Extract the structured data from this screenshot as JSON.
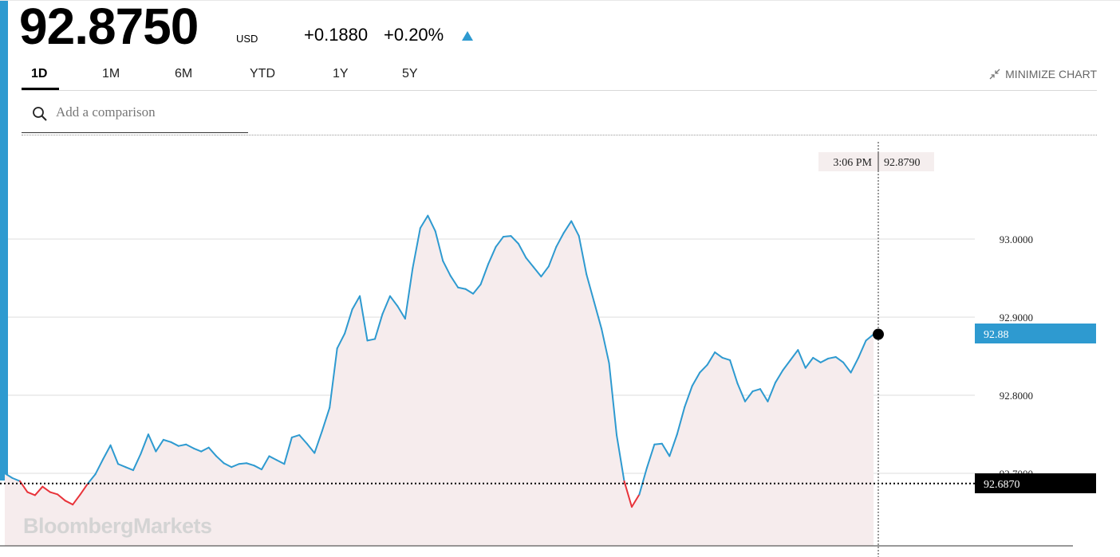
{
  "header": {
    "price": "92.8750",
    "currency": "USD",
    "change_abs": "+0.1880",
    "change_pct": "+0.20%"
  },
  "tabs": [
    {
      "label": "1D",
      "active": true
    },
    {
      "label": "1M"
    },
    {
      "label": "6M"
    },
    {
      "label": "YTD"
    },
    {
      "label": "1Y"
    },
    {
      "label": "5Y"
    }
  ],
  "minimize_label": "MINIMIZE CHART",
  "search": {
    "placeholder": "Add a comparison"
  },
  "watermark": "BloombergMarkets",
  "colors": {
    "accent": "#2e9ad0",
    "up_line": "#2e9ad0",
    "down_line": "#e8333a",
    "fill": "#f6eced",
    "current_badge": "#2e9ad0",
    "prev_close_badge": "#000000"
  },
  "chart_data": {
    "type": "line",
    "ylim": [
      92.6,
      93.1
    ],
    "y_ticks": [
      "93.0000",
      "92.9000",
      "92.8000",
      "92.7000"
    ],
    "y_tick_values": [
      93.0,
      92.9,
      92.8,
      92.7
    ],
    "grid": true,
    "previous_close": 92.687,
    "previous_close_label": "92.6870",
    "current_label": "92.88",
    "crosshair": {
      "time": "3:06 PM",
      "value": "92.8790"
    },
    "series": [
      {
        "values": [
          92.7,
          92.694,
          92.69,
          92.676,
          92.672,
          92.683,
          92.676,
          92.673,
          92.665,
          92.66,
          92.673,
          92.687,
          92.699,
          92.718,
          92.736,
          92.712,
          92.708,
          92.704,
          92.725,
          92.75,
          92.728,
          92.743,
          92.74,
          92.735,
          92.737,
          92.732,
          92.728,
          92.733,
          92.722,
          92.713,
          92.708,
          92.712,
          92.713,
          92.71,
          92.705,
          92.722,
          92.717,
          92.712,
          92.746,
          92.749,
          92.738,
          92.726,
          92.754,
          92.784,
          92.86,
          92.879,
          92.91,
          92.927,
          92.87,
          92.872,
          92.904,
          92.927,
          92.914,
          92.898,
          92.963,
          93.014,
          93.03,
          93.01,
          92.972,
          92.953,
          92.938,
          92.936,
          92.93,
          92.942,
          92.968,
          92.99,
          93.003,
          93.004,
          92.994,
          92.976,
          92.964,
          92.952,
          92.965,
          92.99,
          93.008,
          93.023,
          93.004,
          92.955,
          92.92,
          92.885,
          92.841,
          92.749,
          92.69,
          92.657,
          92.673,
          92.707,
          92.737,
          92.738,
          92.722,
          92.75,
          92.785,
          92.812,
          92.829,
          92.839,
          92.855,
          92.848,
          92.845,
          92.815,
          92.792,
          92.805,
          92.808,
          92.792,
          92.816,
          92.832,
          92.845,
          92.858,
          92.835,
          92.848,
          92.842,
          92.847,
          92.849,
          92.842,
          92.829,
          92.848,
          92.87,
          92.878
        ]
      }
    ]
  }
}
